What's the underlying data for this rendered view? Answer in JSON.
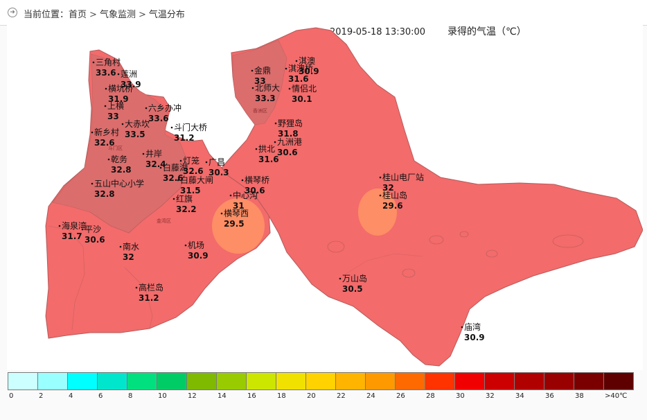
{
  "breadcrumb": {
    "prefix": "当前位置：",
    "items": [
      "首页",
      "气象监测",
      "气温分布"
    ],
    "separator": ">"
  },
  "map": {
    "timestamp": "2019-05-18 13:30:00",
    "title": "录得的气温（℃）",
    "colors": {
      "main": "#f36b6b",
      "inland": "#dc6d6d",
      "cool": "#ff9265",
      "boundary": "#b45a5a",
      "label": "#111111"
    },
    "districts": [
      "香洲区",
      "斗门区",
      "金湾区"
    ],
    "stations": [
      {
        "name": "三角村",
        "temp": "33.6"
      },
      {
        "name": "莲洲",
        "temp": "33.9"
      },
      {
        "name": "横坑桥",
        "temp": "31.9"
      },
      {
        "name": "上横",
        "temp": "33"
      },
      {
        "name": "六乡办冲",
        "temp": "33.6"
      },
      {
        "name": "大赤坎",
        "temp": "33.5"
      },
      {
        "name": "新乡村",
        "temp": "32.6"
      },
      {
        "name": "斗门大桥",
        "temp": "31.2"
      },
      {
        "name": "乾务",
        "temp": "32.8"
      },
      {
        "name": "井岸",
        "temp": "32.4"
      },
      {
        "name": "白藤湖",
        "temp": "32.6"
      },
      {
        "name": "灯笼",
        "temp": "32.6"
      },
      {
        "name": "广昌",
        "temp": "30.3"
      },
      {
        "name": "白藤大闸",
        "temp": "31.5"
      },
      {
        "name": "五山中心小学",
        "temp": "32.8"
      },
      {
        "name": "红旗",
        "temp": "32.2"
      },
      {
        "name": "海泉湾",
        "temp": "31.7"
      },
      {
        "name": "平沙",
        "temp": "30.6"
      },
      {
        "name": "南水",
        "temp": "32"
      },
      {
        "name": "机场",
        "temp": "30.9"
      },
      {
        "name": "高栏岛",
        "temp": "31.2"
      },
      {
        "name": "金鼎",
        "temp": "33"
      },
      {
        "name": "北师大",
        "temp": "33.3"
      },
      {
        "name": "淇澳",
        "temp": "30.9"
      },
      {
        "name": "淇澳桥",
        "temp": "31.6"
      },
      {
        "name": "情侣北",
        "temp": "30.1"
      },
      {
        "name": "野狸岛",
        "temp": "31.8"
      },
      {
        "name": "拱北",
        "temp": "31.6"
      },
      {
        "name": "九洲港",
        "temp": "30.6"
      },
      {
        "name": "横琴桥",
        "temp": "30.6"
      },
      {
        "name": "中心沟",
        "temp": "31"
      },
      {
        "name": "横琴西",
        "temp": "29.5"
      },
      {
        "name": "桂山电厂站",
        "temp": "32"
      },
      {
        "name": "桂山岛",
        "temp": "29.6"
      },
      {
        "name": "万山岛",
        "temp": "30.5"
      },
      {
        "name": "庙湾",
        "temp": "30.9"
      }
    ]
  },
  "legend": {
    "colors": [
      "#ccffff",
      "#99ffff",
      "#00ffff",
      "#00e6cc",
      "#00e07f",
      "#00cc66",
      "#7fba00",
      "#99cc00",
      "#cce600",
      "#f0e100",
      "#ffd200",
      "#ffb400",
      "#ff9900",
      "#ff6a00",
      "#ff3300",
      "#f00000",
      "#cc0000",
      "#b00000",
      "#990000",
      "#7a0000",
      "#5e0000"
    ],
    "labels": [
      "0",
      "2",
      "4",
      "6",
      "8",
      "10",
      "12",
      "14",
      "16",
      "18",
      "20",
      "22",
      "24",
      "26",
      "28",
      "30",
      "32",
      "34",
      "36",
      "38",
      ">40℃"
    ]
  }
}
